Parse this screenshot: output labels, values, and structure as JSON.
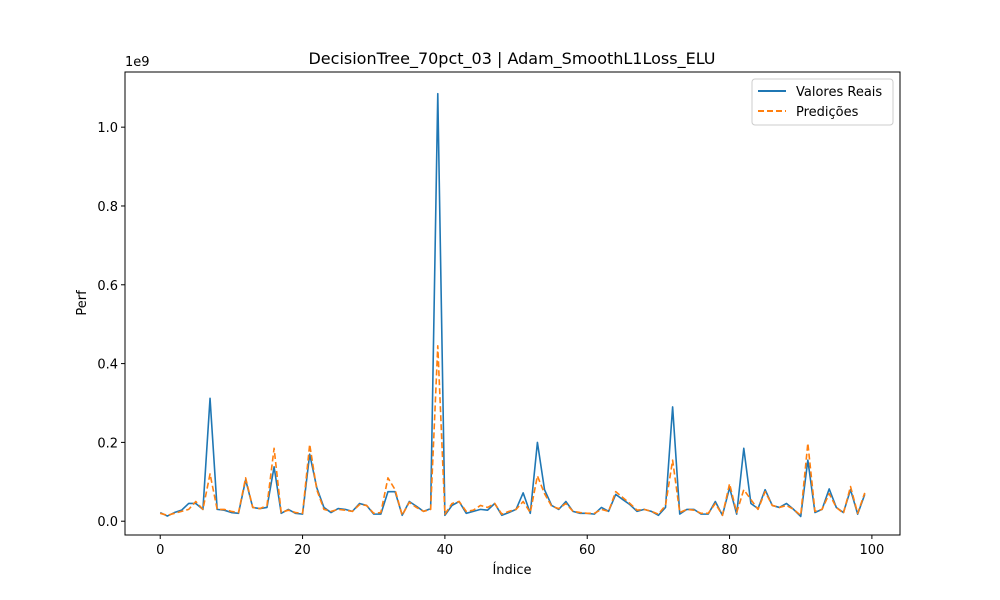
{
  "chart_data": {
    "type": "line",
    "title": "DecisionTree_70pct_03 | Adam_SmoothL1Loss_ELU",
    "xlabel": "Índice",
    "ylabel": "Perf",
    "y_offset_label": "1e9",
    "xlim": [
      -4.95,
      103.95
    ],
    "ylim": [
      -0.035,
      1.14
    ],
    "x_ticks": [
      0,
      20,
      40,
      60,
      80,
      100
    ],
    "x_tick_labels": [
      "0",
      "20",
      "40",
      "60",
      "80",
      "100"
    ],
    "y_ticks": [
      0.0,
      0.2,
      0.4,
      0.6,
      0.8,
      1.0
    ],
    "y_tick_labels": [
      "0.0",
      "0.2",
      "0.4",
      "0.6",
      "0.8",
      "1.0"
    ],
    "grid": false,
    "legend_position": "top-right",
    "x": [
      0,
      1,
      2,
      3,
      4,
      5,
      6,
      7,
      8,
      9,
      10,
      11,
      12,
      13,
      14,
      15,
      16,
      17,
      18,
      19,
      20,
      21,
      22,
      23,
      24,
      25,
      26,
      27,
      28,
      29,
      30,
      31,
      32,
      33,
      34,
      35,
      36,
      37,
      38,
      39,
      40,
      41,
      42,
      43,
      44,
      45,
      46,
      47,
      48,
      49,
      50,
      51,
      52,
      53,
      54,
      55,
      56,
      57,
      58,
      59,
      60,
      61,
      62,
      63,
      64,
      65,
      66,
      67,
      68,
      69,
      70,
      71,
      72,
      73,
      74,
      75,
      76,
      77,
      78,
      79,
      80,
      81,
      82,
      83,
      84,
      85,
      86,
      87,
      88,
      89,
      90,
      91,
      92,
      93,
      94,
      95,
      96,
      97,
      98,
      99
    ],
    "series": [
      {
        "name": "Valores Reais",
        "color": "#1f77b4",
        "style": "solid",
        "values": [
          0.022,
          0.013,
          0.022,
          0.028,
          0.045,
          0.045,
          0.03,
          0.312,
          0.03,
          0.028,
          0.022,
          0.02,
          0.105,
          0.035,
          0.032,
          0.035,
          0.138,
          0.02,
          0.03,
          0.02,
          0.018,
          0.17,
          0.085,
          0.035,
          0.022,
          0.032,
          0.03,
          0.025,
          0.045,
          0.04,
          0.018,
          0.018,
          0.075,
          0.075,
          0.015,
          0.05,
          0.038,
          0.025,
          0.032,
          1.085,
          0.015,
          0.04,
          0.05,
          0.02,
          0.025,
          0.03,
          0.028,
          0.045,
          0.015,
          0.022,
          0.03,
          0.072,
          0.02,
          0.2,
          0.08,
          0.04,
          0.03,
          0.05,
          0.025,
          0.02,
          0.02,
          0.018,
          0.035,
          0.025,
          0.068,
          0.055,
          0.042,
          0.025,
          0.03,
          0.025,
          0.015,
          0.035,
          0.29,
          0.018,
          0.03,
          0.03,
          0.018,
          0.018,
          0.05,
          0.015,
          0.085,
          0.018,
          0.185,
          0.045,
          0.032,
          0.08,
          0.04,
          0.035,
          0.045,
          0.03,
          0.012,
          0.155,
          0.022,
          0.03,
          0.082,
          0.035,
          0.022,
          0.08,
          0.018,
          0.068
        ]
      },
      {
        "name": "Predições",
        "color": "#ff7f0e",
        "style": "dashed",
        "values": [
          0.02,
          0.015,
          0.02,
          0.025,
          0.03,
          0.05,
          0.03,
          0.12,
          0.03,
          0.03,
          0.025,
          0.022,
          0.11,
          0.035,
          0.032,
          0.04,
          0.185,
          0.022,
          0.028,
          0.022,
          0.02,
          0.195,
          0.08,
          0.03,
          0.025,
          0.03,
          0.028,
          0.025,
          0.042,
          0.04,
          0.02,
          0.022,
          0.11,
          0.08,
          0.015,
          0.048,
          0.035,
          0.025,
          0.03,
          0.445,
          0.018,
          0.045,
          0.05,
          0.025,
          0.028,
          0.04,
          0.035,
          0.045,
          0.018,
          0.025,
          0.03,
          0.05,
          0.022,
          0.115,
          0.07,
          0.038,
          0.032,
          0.045,
          0.025,
          0.022,
          0.02,
          0.02,
          0.03,
          0.025,
          0.075,
          0.06,
          0.045,
          0.028,
          0.03,
          0.025,
          0.018,
          0.04,
          0.155,
          0.022,
          0.03,
          0.028,
          0.02,
          0.02,
          0.045,
          0.015,
          0.095,
          0.022,
          0.08,
          0.055,
          0.03,
          0.075,
          0.04,
          0.035,
          0.04,
          0.03,
          0.015,
          0.198,
          0.025,
          0.03,
          0.07,
          0.035,
          0.02,
          0.088,
          0.02,
          0.072
        ]
      }
    ]
  }
}
